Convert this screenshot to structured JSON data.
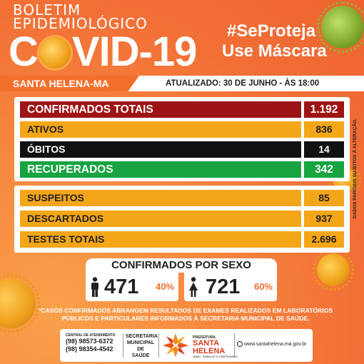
{
  "header": {
    "line1": "BOLETIM",
    "line2": "EPIDEMIOLÓGICO",
    "covid_prefix": "C",
    "covid_suffix": "VID-19",
    "hashtag": "#SeProteja",
    "mask": "Use Máscara"
  },
  "strip": {
    "city": "SANTA HELENA-MA",
    "updated": "ATUALIZADO:  30 DE JUNHO - ÀS 18:00"
  },
  "main_rows": [
    {
      "label": "CONFIRMADOS TOTAIS",
      "value": "1.192",
      "color": "#9e1414"
    },
    {
      "label": "ATIVOS",
      "value": "836",
      "color": "#f4a619"
    },
    {
      "label": "ÓBITOS",
      "value": "14",
      "color": "#111111"
    },
    {
      "label": "RECUPERADOS",
      "value": "342",
      "color": "#17a441"
    }
  ],
  "secondary_rows": [
    {
      "label": "SUSPEITOS",
      "value": "85"
    },
    {
      "label": "DESCARTADOS",
      "value": "937"
    },
    {
      "label": "TESTES TOTAIS",
      "value": "2.696"
    }
  ],
  "side_note": "DADOS PARCIAIS SUJEITOS À ALTERAÇÃO.",
  "sex": {
    "title": "CONFIRMADOS POR SEXO",
    "male": {
      "icon": "male-icon",
      "count": "471",
      "pct": "40%"
    },
    "female": {
      "icon": "female-icon",
      "count": "721",
      "pct": "60%"
    }
  },
  "note": "*CASOS CONFIRMADOS ABRANGEM RESULTADOS DE EXAMES REALIZADOS EM LABORATÓRIOS PÚBLICOS E PARTICULARES INFORMADOS À SECRETARIA MUNICIPAL DE SAÚDE.",
  "footer": {
    "phone_title": "CENTRAL DE ATENDIMENTO",
    "phone1": "(98) 98573-6372",
    "phone2": "(98) 98354-4542",
    "secretaria_l1": "SECRETARIA",
    "secretaria_l2": "MUNICIPAL DE",
    "secretaria_l3": "SAÚDE",
    "pref_a": "PREFEITURA",
    "pref_b1": "SANTA",
    "pref_b2": "HELENA",
    "pref_c": "UNIÃO, TRABALHO E COMPROMISSO",
    "website": "www.santahelena.ma.gov.br"
  }
}
